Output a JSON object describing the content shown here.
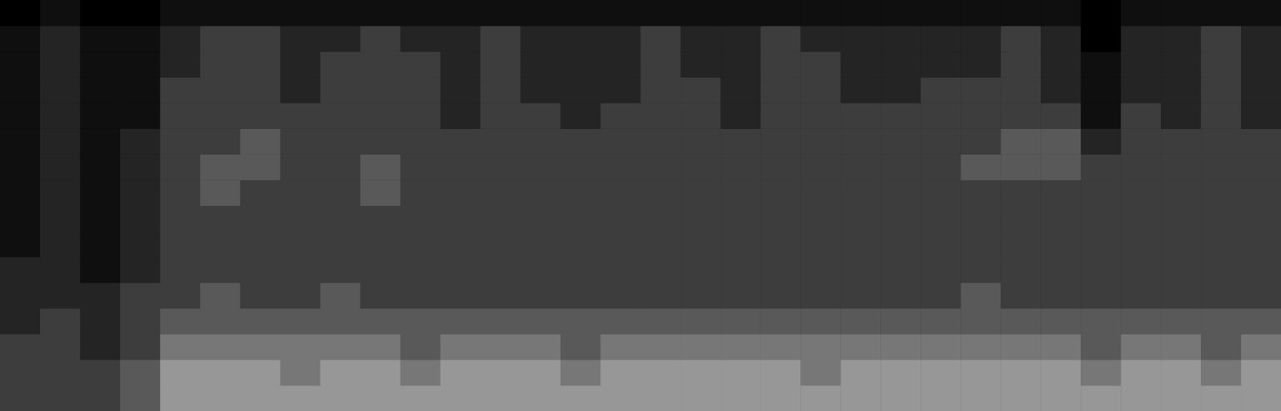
{
  "chart_data": {
    "type": "heatmap",
    "xlim": [
      0,
      32
    ],
    "ylim": [
      0,
      16
    ],
    "clim": [
      0,
      9
    ],
    "tick_labels": false,
    "grid": false,
    "cells": [
      [
        3,
        3,
        3,
        4,
        6,
        6,
        6,
        6,
        6,
        6,
        6,
        6,
        6,
        6,
        6,
        6,
        6,
        6,
        6,
        6,
        6,
        6,
        6,
        6,
        6,
        6,
        6,
        6,
        6,
        6,
        6,
        6
      ],
      [
        3,
        3,
        3,
        4,
        6,
        6,
        6,
        5,
        6,
        6,
        5,
        6,
        6,
        6,
        5,
        6,
        6,
        6,
        6,
        6,
        5,
        6,
        6,
        6,
        6,
        6,
        6,
        5,
        6,
        6,
        5,
        6
      ],
      [
        3,
        3,
        2,
        3,
        5,
        5,
        5,
        5,
        5,
        5,
        4,
        5,
        5,
        5,
        4,
        5,
        5,
        5,
        5,
        5,
        5,
        5,
        5,
        5,
        5,
        5,
        5,
        4,
        5,
        5,
        4,
        5
      ],
      [
        2,
        3,
        2,
        3,
        4,
        4,
        4,
        4,
        4,
        4,
        4,
        4,
        4,
        4,
        4,
        4,
        4,
        4,
        4,
        4,
        4,
        4,
        4,
        4,
        4,
        4,
        4,
        4,
        4,
        4,
        4,
        4
      ],
      [
        2,
        2,
        2,
        3,
        3,
        4,
        3,
        3,
        4,
        3,
        3,
        3,
        3,
        3,
        3,
        3,
        3,
        3,
        3,
        3,
        3,
        3,
        3,
        3,
        4,
        3,
        3,
        3,
        3,
        3,
        3,
        3
      ],
      [
        2,
        2,
        1,
        2,
        3,
        3,
        3,
        3,
        3,
        3,
        3,
        3,
        3,
        3,
        3,
        3,
        3,
        3,
        3,
        3,
        3,
        3,
        3,
        3,
        3,
        3,
        3,
        3,
        3,
        3,
        3,
        3
      ],
      [
        1,
        2,
        1,
        2,
        3,
        3,
        3,
        3,
        3,
        3,
        3,
        3,
        3,
        3,
        3,
        3,
        3,
        3,
        3,
        3,
        3,
        3,
        3,
        3,
        3,
        3,
        3,
        3,
        3,
        3,
        3,
        3
      ],
      [
        1,
        2,
        1,
        2,
        3,
        3,
        3,
        3,
        3,
        3,
        3,
        3,
        3,
        3,
        3,
        3,
        3,
        3,
        3,
        3,
        3,
        3,
        3,
        3,
        3,
        3,
        3,
        3,
        3,
        3,
        3,
        3
      ],
      [
        1,
        2,
        1,
        2,
        3,
        4,
        3,
        3,
        3,
        4,
        3,
        3,
        3,
        3,
        3,
        3,
        3,
        3,
        3,
        3,
        3,
        3,
        3,
        3,
        3,
        3,
        3,
        3,
        3,
        3,
        3,
        3
      ],
      [
        1,
        2,
        1,
        2,
        3,
        4,
        4,
        3,
        3,
        4,
        3,
        3,
        3,
        3,
        3,
        3,
        3,
        3,
        3,
        3,
        3,
        3,
        3,
        3,
        4,
        4,
        4,
        3,
        3,
        3,
        3,
        3
      ],
      [
        1,
        2,
        1,
        2,
        3,
        3,
        4,
        3,
        3,
        3,
        3,
        3,
        3,
        3,
        3,
        3,
        3,
        3,
        3,
        3,
        3,
        3,
        3,
        3,
        3,
        4,
        4,
        2,
        3,
        3,
        3,
        3
      ],
      [
        1,
        2,
        1,
        1,
        3,
        3,
        3,
        3,
        3,
        3,
        3,
        2,
        3,
        3,
        2,
        3,
        3,
        3,
        2,
        3,
        3,
        3,
        3,
        3,
        3,
        3,
        3,
        1,
        3,
        2,
        3,
        2
      ],
      [
        1,
        2,
        1,
        1,
        3,
        3,
        3,
        2,
        3,
        3,
        3,
        2,
        3,
        2,
        2,
        2,
        3,
        3,
        2,
        3,
        3,
        2,
        2,
        3,
        3,
        3,
        2,
        1,
        2,
        2,
        3,
        2
      ],
      [
        1,
        2,
        1,
        1,
        2,
        3,
        3,
        2,
        3,
        3,
        3,
        2,
        3,
        2,
        2,
        2,
        3,
        2,
        2,
        3,
        3,
        2,
        2,
        2,
        2,
        3,
        2,
        1,
        2,
        2,
        3,
        2
      ],
      [
        1,
        2,
        1,
        1,
        2,
        3,
        3,
        2,
        2,
        3,
        2,
        2,
        3,
        2,
        2,
        2,
        3,
        2,
        2,
        3,
        2,
        2,
        2,
        2,
        2,
        3,
        2,
        0,
        2,
        2,
        3,
        2
      ],
      [
        0,
        1,
        0,
        0,
        1,
        1,
        1,
        1,
        1,
        1,
        1,
        1,
        1,
        1,
        1,
        1,
        1,
        1,
        1,
        1,
        1,
        1,
        1,
        1,
        1,
        1,
        1,
        0,
        1,
        1,
        1,
        1
      ]
    ]
  }
}
